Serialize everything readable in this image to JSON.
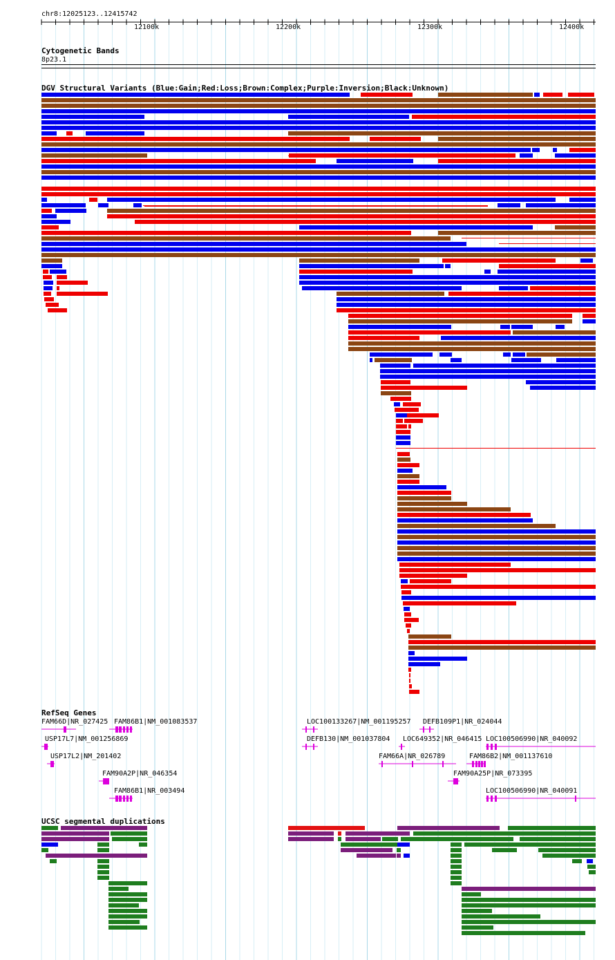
{
  "location": "chr8:12025123..12415742",
  "ruler": {
    "ticks": [
      "12100k",
      "12200k",
      "12300k",
      "12400k"
    ]
  },
  "cytoband": {
    "title": "Cytogenetic Bands",
    "band": "8p23.1"
  },
  "dgv": {
    "title": "DGV Structural Variants (Blue:Gain;Red:Loss;Brown:Complex;Purple:Inversion;Black:Unknown)",
    "colors": {
      "gain": "#0000ee",
      "loss": "#ee0000",
      "complex": "#8b4513",
      "inversion": "#800080",
      "unknown": "#000000"
    }
  },
  "refseq": {
    "title": "RefSeq Genes",
    "color": "#dd00dd",
    "labels": [
      "FAM66D|NR_027425",
      "FAM86B1|NM_001083537",
      "USP17L7|NM_001256869",
      "USP17L2|NM_201402",
      "FAM90A2P|NR_046354",
      "FAM86B1|NR_003494",
      "LOC100133267|NM_001195257",
      "DEFB109P1|NR_024044",
      "DEFB130|NM_001037804",
      "LOC649352|NR_046415",
      "LOC100506990|NR_040092",
      "FAM66A|NR_026789",
      "FAM86B2|NM_001137610",
      "FAM90A25P|NR_073395",
      "LOC100506990|NR_040091"
    ]
  },
  "segdups": {
    "title": "UCSC segmental duplications",
    "colors": {
      "green": "#1e7d1e",
      "purple": "#7b1e7b",
      "red": "#e31212",
      "blue": "#0000ee"
    }
  }
}
